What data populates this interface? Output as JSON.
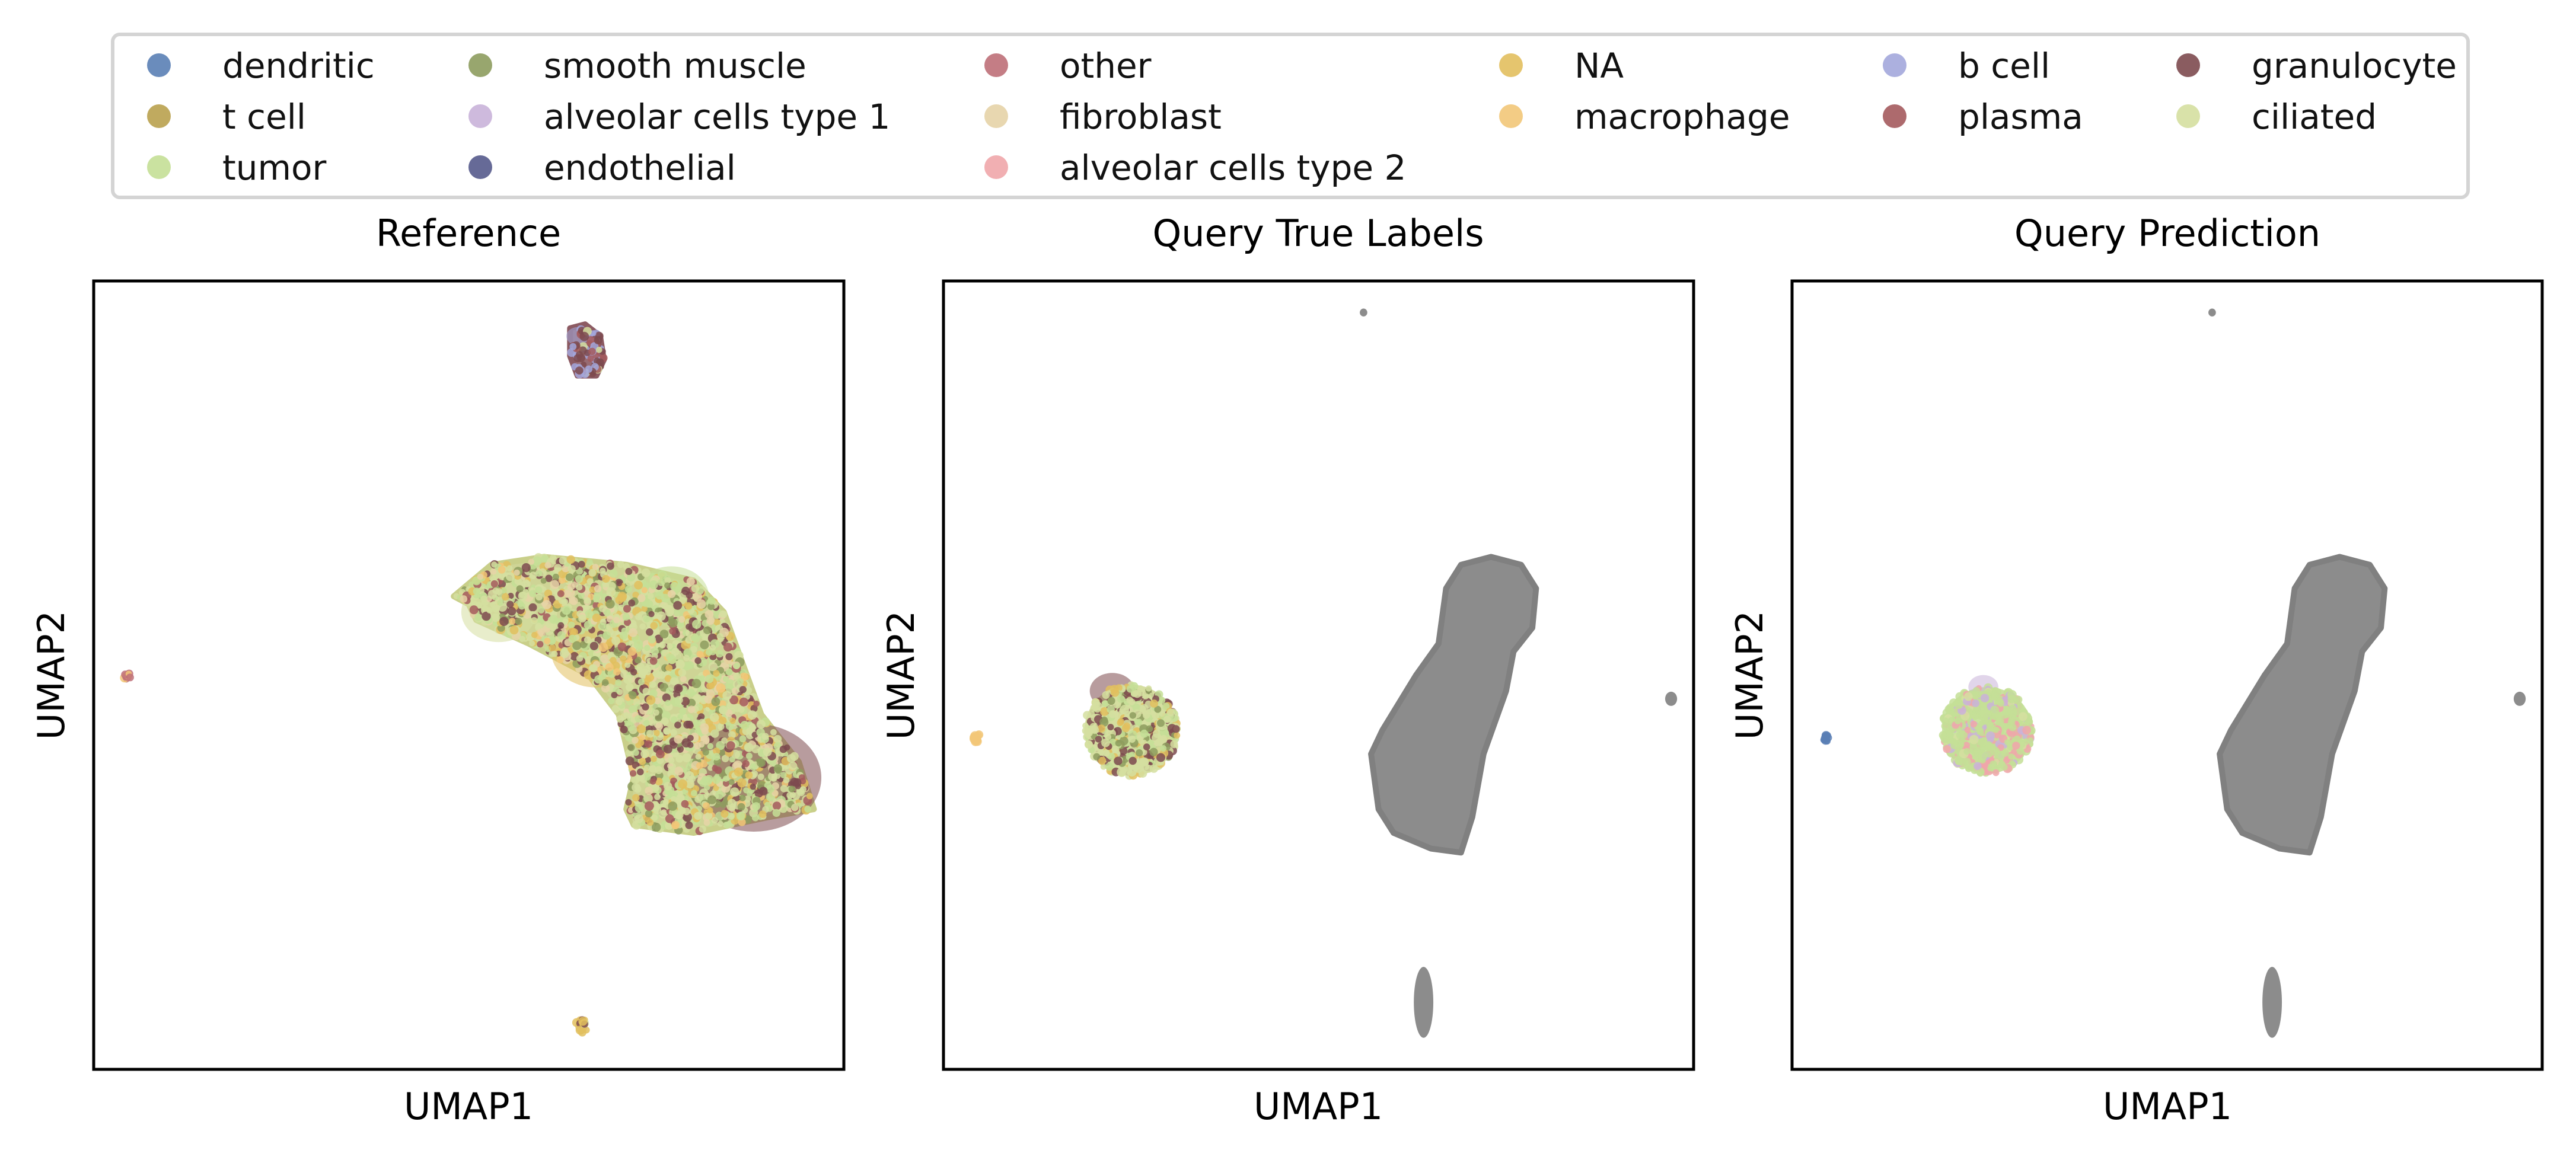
{
  "legend": {
    "placement": "top-center",
    "columns": [
      [
        {
          "label": "dendritic",
          "color": "#5a7fb5"
        },
        {
          "label": "t cell",
          "color": "#b9a14e"
        },
        {
          "label": "tumor",
          "color": "#c4df96"
        }
      ],
      [
        {
          "label": "smooth muscle",
          "color": "#8d9c5e"
        },
        {
          "label": "alveolar cells type 1",
          "color": "#c9b3d9"
        },
        {
          "label": "endothelial",
          "color": "#555a8c"
        }
      ],
      [
        {
          "label": "other",
          "color": "#be6f78"
        },
        {
          "label": "fibroblast",
          "color": "#e6d3a7"
        },
        {
          "label": "alveolar cells type 2",
          "color": "#f0a6aa"
        }
      ],
      [
        {
          "label": "NA",
          "color": "#e2bf5e"
        },
        {
          "label": "macrophage",
          "color": "#f2c778"
        }
      ],
      [
        {
          "label": "b cell",
          "color": "#a3a7dc"
        },
        {
          "label": "plasma",
          "color": "#a45a5d"
        }
      ],
      [
        {
          "label": "granulocyte",
          "color": "#7d4a4f"
        },
        {
          "label": "ciliated",
          "color": "#d5dfa0"
        }
      ]
    ]
  },
  "chart_data": [
    {
      "type": "scatter",
      "title": "Reference",
      "xlabel": "UMAP1",
      "ylabel": "UMAP2",
      "xlim": [
        0,
        10
      ],
      "ylim": [
        0,
        10
      ],
      "grid": false,
      "ticks": false,
      "base_color": "",
      "clusters": [
        {
          "shape": "polygon",
          "outline": [
            [
              5.0,
              5.9
            ],
            [
              4.8,
              6.0
            ],
            [
              5.3,
              6.4
            ],
            [
              6.0,
              6.5
            ],
            [
              7.1,
              6.4
            ],
            [
              8.0,
              6.2
            ],
            [
              8.4,
              5.8
            ],
            [
              8.9,
              4.5
            ],
            [
              9.4,
              3.9
            ],
            [
              9.6,
              3.3
            ],
            [
              9.0,
              3.2
            ],
            [
              8.0,
              3.0
            ],
            [
              7.2,
              3.1
            ],
            [
              7.1,
              3.3
            ],
            [
              7.2,
              3.7
            ],
            [
              7.0,
              4.5
            ],
            [
              6.6,
              5.0
            ],
            [
              5.8,
              5.4
            ],
            [
              5.1,
              5.7
            ]
          ],
          "color": "#c9cf8a",
          "density": 0.9,
          "mix": [
            [
              "#d5dfa0",
              0.3
            ],
            [
              "#c4df96",
              0.2
            ],
            [
              "#e2bf5e",
              0.12
            ],
            [
              "#7d4a4f",
              0.12
            ],
            [
              "#e6d3a7",
              0.1
            ],
            [
              "#8d9c5e",
              0.08
            ],
            [
              "#a45a5d",
              0.05
            ],
            [
              "#f2c778",
              0.03
            ]
          ],
          "regions": [
            {
              "center": [
                8.8,
                3.7
              ],
              "radius": 0.9,
              "color": "#7d4a4f"
            },
            {
              "center": [
                6.7,
                5.3
              ],
              "radius": 0.6,
              "color": "#e2bf5e"
            },
            {
              "center": [
                5.4,
                5.8
              ],
              "radius": 0.5,
              "color": "#d5dfa0"
            },
            {
              "center": [
                7.7,
                6.0
              ],
              "radius": 0.5,
              "color": "#c4df96"
            }
          ]
        },
        {
          "shape": "polygon",
          "outline": [
            [
              6.35,
              9.4
            ],
            [
              6.55,
              9.45
            ],
            [
              6.75,
              9.3
            ],
            [
              6.8,
              9.0
            ],
            [
              6.7,
              8.8
            ],
            [
              6.45,
              8.8
            ],
            [
              6.35,
              9.05
            ]
          ],
          "color": "#8c5b63",
          "density": 0.9,
          "mix": [
            [
              "#7d4a4f",
              0.4
            ],
            [
              "#a3a7dc",
              0.25
            ],
            [
              "#a45a5d",
              0.2
            ],
            [
              "#d5dfa0",
              0.15
            ]
          ],
          "regions": [
            {
              "center": [
                6.45,
                9.3
              ],
              "radius": 0.15,
              "color": "#a3a7dc"
            }
          ]
        },
        {
          "shape": "ellipse",
          "center": [
            6.5,
            0.55
          ],
          "rx": 0.08,
          "ry": 0.1,
          "color": "#d9c27d",
          "density": 0.9,
          "mix": [
            [
              "#e2bf5e",
              0.5
            ],
            [
              "#d5dfa0",
              0.3
            ],
            [
              "#7d4a4f",
              0.2
            ]
          ]
        },
        {
          "shape": "ellipse",
          "center": [
            0.45,
            5.0
          ],
          "rx": 0.05,
          "ry": 0.06,
          "color": "#f2c778",
          "density": 0.9,
          "mix": [
            [
              "#f2c778",
              0.7
            ],
            [
              "#be6f78",
              0.3
            ]
          ]
        }
      ]
    },
    {
      "type": "scatter",
      "title": "Query True Labels",
      "xlabel": "UMAP1",
      "ylabel": "UMAP2",
      "xlim": [
        0,
        10
      ],
      "ylim": [
        0,
        10
      ],
      "grid": false,
      "ticks": false,
      "base_color": "#808080",
      "clusters": [
        {
          "shape": "polygon",
          "outline": [
            [
              6.7,
              6.1
            ],
            [
              6.6,
              5.4
            ],
            [
              6.3,
              5.0
            ],
            [
              5.85,
              4.3
            ],
            [
              5.7,
              4.0
            ],
            [
              5.8,
              3.3
            ],
            [
              6.0,
              3.0
            ],
            [
              6.5,
              2.8
            ],
            [
              6.9,
              2.75
            ],
            [
              7.05,
              3.2
            ],
            [
              7.2,
              4.0
            ],
            [
              7.5,
              4.8
            ],
            [
              7.6,
              5.3
            ],
            [
              7.85,
              5.6
            ],
            [
              7.9,
              6.1
            ],
            [
              7.7,
              6.4
            ],
            [
              7.3,
              6.5
            ],
            [
              6.9,
              6.4
            ]
          ],
          "color": "#808080",
          "density": 0.9,
          "mix": []
        },
        {
          "shape": "ellipse",
          "center": [
            6.4,
            0.85
          ],
          "rx": 0.13,
          "ry": 0.45,
          "color": "#808080",
          "density": 0.9,
          "mix": []
        },
        {
          "shape": "ellipse",
          "center": [
            9.7,
            4.7
          ],
          "rx": 0.08,
          "ry": 0.09,
          "color": "#808080",
          "density": 0.9,
          "mix": []
        },
        {
          "shape": "ellipse",
          "center": [
            5.6,
            9.6
          ],
          "rx": 0.05,
          "ry": 0.05,
          "color": "#808080",
          "density": 0.9,
          "mix": []
        },
        {
          "shape": "ellipse",
          "center": [
            2.5,
            4.3
          ],
          "rx": 0.62,
          "ry": 0.58,
          "color": "#d1d897",
          "density": 0.9,
          "mix": [
            [
              "#d5dfa0",
              0.5
            ],
            [
              "#c4df96",
              0.15
            ],
            [
              "#7d4a4f",
              0.15
            ],
            [
              "#8d9c5e",
              0.1
            ],
            [
              "#e2bf5e",
              0.1
            ]
          ],
          "regions": [
            {
              "center": [
                2.25,
                4.8
              ],
              "radius": 0.3,
              "color": "#7d4a4f"
            }
          ]
        },
        {
          "shape": "ellipse",
          "center": [
            0.45,
            4.2
          ],
          "rx": 0.05,
          "ry": 0.05,
          "color": "#f2c778",
          "density": 0.9,
          "mix": [
            [
              "#f2c778",
              1.0
            ]
          ]
        }
      ]
    },
    {
      "type": "scatter",
      "title": "Query Prediction",
      "xlabel": "UMAP1",
      "ylabel": "UMAP2",
      "xlim": [
        0,
        10
      ],
      "ylim": [
        0,
        10
      ],
      "grid": false,
      "ticks": false,
      "base_color": "#808080",
      "clusters": [
        {
          "shape": "polygon",
          "outline": [
            [
              6.7,
              6.1
            ],
            [
              6.6,
              5.4
            ],
            [
              6.3,
              5.0
            ],
            [
              5.85,
              4.3
            ],
            [
              5.7,
              4.0
            ],
            [
              5.8,
              3.3
            ],
            [
              6.0,
              3.0
            ],
            [
              6.5,
              2.8
            ],
            [
              6.9,
              2.75
            ],
            [
              7.05,
              3.2
            ],
            [
              7.2,
              4.0
            ],
            [
              7.5,
              4.8
            ],
            [
              7.6,
              5.3
            ],
            [
              7.85,
              5.6
            ],
            [
              7.9,
              6.1
            ],
            [
              7.7,
              6.4
            ],
            [
              7.3,
              6.5
            ],
            [
              6.9,
              6.4
            ]
          ],
          "color": "#808080",
          "density": 0.9,
          "mix": []
        },
        {
          "shape": "ellipse",
          "center": [
            6.4,
            0.85
          ],
          "rx": 0.13,
          "ry": 0.45,
          "color": "#808080",
          "density": 0.9,
          "mix": []
        },
        {
          "shape": "ellipse",
          "center": [
            9.7,
            4.7
          ],
          "rx": 0.08,
          "ry": 0.09,
          "color": "#808080",
          "density": 0.9,
          "mix": []
        },
        {
          "shape": "ellipse",
          "center": [
            5.6,
            9.6
          ],
          "rx": 0.05,
          "ry": 0.05,
          "color": "#808080",
          "density": 0.9,
          "mix": []
        },
        {
          "shape": "ellipse",
          "center": [
            2.6,
            4.3
          ],
          "rx": 0.6,
          "ry": 0.55,
          "color": "#c4df96",
          "density": 0.9,
          "mix": [
            [
              "#c4df96",
              0.65
            ],
            [
              "#f0a6aa",
              0.2
            ],
            [
              "#c9b3d9",
              0.1
            ],
            [
              "#d5dfa0",
              0.05
            ]
          ],
          "regions": [
            {
              "center": [
                2.55,
                4.85
              ],
              "radius": 0.2,
              "color": "#c9b3d9"
            }
          ]
        },
        {
          "shape": "ellipse",
          "center": [
            0.45,
            4.2
          ],
          "rx": 0.04,
          "ry": 0.04,
          "color": "#5a7fb5",
          "density": 0.9,
          "mix": [
            [
              "#5a7fb5",
              1.0
            ]
          ]
        }
      ]
    }
  ]
}
